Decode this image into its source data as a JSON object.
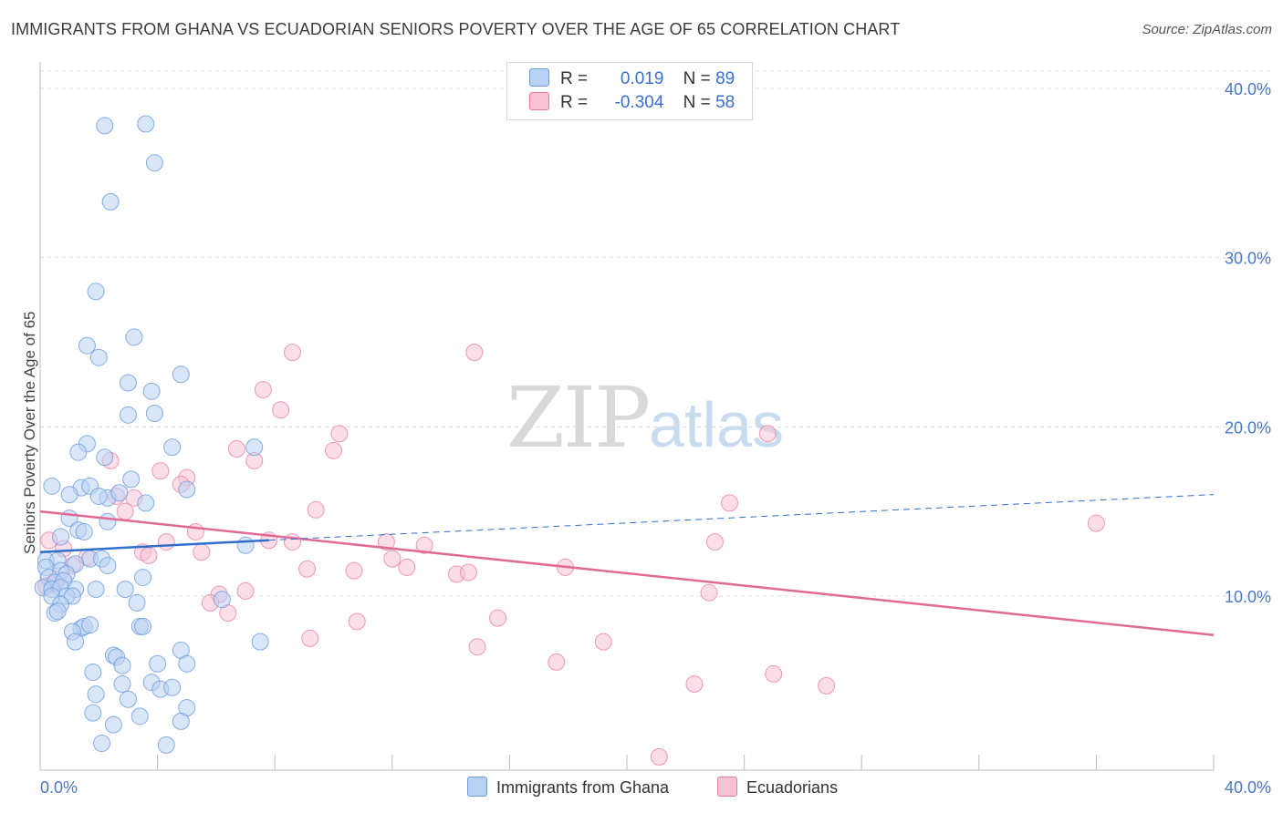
{
  "title": "IMMIGRANTS FROM GHANA VS ECUADORIAN SENIORS POVERTY OVER THE AGE OF 65 CORRELATION CHART",
  "source": "Source: ZipAtlas.com",
  "watermark": {
    "zip": "ZIP",
    "atlas": "atlas"
  },
  "legend": {
    "rows": [
      {
        "r_label": "R =",
        "r_value": "0.019",
        "n_label": "N =",
        "n_value": "89"
      },
      {
        "r_label": "R =",
        "r_value": "-0.304",
        "n_label": "N =",
        "n_value": "58"
      }
    ]
  },
  "bottom_legend": [
    "Immigrants from Ghana",
    "Ecuadorians"
  ],
  "colors": {
    "ghana": "#6b9be0",
    "ghana_fill": "#b9d1f3",
    "ecuador": "#e87aa0",
    "ecuador_fill": "#f7c3d4",
    "ghana_line": "#2f6fd0",
    "ecuador_line": "#e06a95"
  },
  "chart_data": {
    "type": "scatter",
    "title": "IMMIGRANTS FROM GHANA VS ECUADORIAN SENIORS POVERTY OVER THE AGE OF 65 CORRELATION CHART",
    "xlabel": "",
    "ylabel": "Seniors Poverty Over the Age of 65",
    "xlim": [
      0,
      40
    ],
    "ylim": [
      0,
      40
    ],
    "x_tick_labels": [
      "0.0%",
      "40.0%"
    ],
    "y_tick_labels": [
      "10.0%",
      "20.0%",
      "30.0%",
      "40.0%"
    ],
    "y_ticks": [
      10,
      20,
      30,
      40
    ],
    "grid": true,
    "legend_position": "top-center",
    "series": [
      {
        "name": "Immigrants from Ghana",
        "r": 0.019,
        "n": 89,
        "trend": {
          "x": [
            0,
            7.8
          ],
          "y": [
            12.6,
            13.3
          ],
          "dashed_extension": {
            "x": [
              7.8,
              40
            ],
            "y": [
              13.3,
              16.0
            ]
          }
        },
        "points": [
          [
            2.2,
            37.8
          ],
          [
            3.6,
            37.9
          ],
          [
            3.9,
            35.6
          ],
          [
            2.4,
            33.3
          ],
          [
            1.9,
            28.0
          ],
          [
            3.2,
            25.3
          ],
          [
            1.6,
            24.8
          ],
          [
            2.0,
            24.1
          ],
          [
            4.8,
            23.1
          ],
          [
            3.0,
            22.6
          ],
          [
            3.8,
            22.1
          ],
          [
            3.0,
            20.7
          ],
          [
            3.9,
            20.8
          ],
          [
            1.6,
            19.0
          ],
          [
            4.5,
            18.8
          ],
          [
            7.3,
            18.8
          ],
          [
            1.3,
            18.5
          ],
          [
            2.2,
            18.2
          ],
          [
            0.4,
            16.5
          ],
          [
            1.4,
            16.4
          ],
          [
            1.7,
            16.5
          ],
          [
            3.1,
            16.9
          ],
          [
            5.0,
            16.3
          ],
          [
            1.0,
            16.0
          ],
          [
            2.3,
            15.8
          ],
          [
            2.7,
            16.1
          ],
          [
            3.6,
            15.5
          ],
          [
            1.0,
            14.6
          ],
          [
            2.3,
            14.4
          ],
          [
            0.7,
            13.5
          ],
          [
            1.3,
            13.9
          ],
          [
            1.5,
            13.8
          ],
          [
            7.0,
            13.0
          ],
          [
            0.2,
            12.1
          ],
          [
            0.6,
            12.1
          ],
          [
            1.7,
            12.2
          ],
          [
            1.2,
            11.9
          ],
          [
            2.1,
            12.2
          ],
          [
            0.2,
            11.7
          ],
          [
            0.7,
            11.5
          ],
          [
            0.9,
            11.3
          ],
          [
            2.3,
            11.8
          ],
          [
            0.3,
            11.1
          ],
          [
            0.5,
            10.8
          ],
          [
            0.8,
            10.9
          ],
          [
            3.5,
            11.1
          ],
          [
            0.1,
            10.5
          ],
          [
            0.4,
            10.4
          ],
          [
            0.7,
            10.5
          ],
          [
            1.2,
            10.4
          ],
          [
            1.9,
            10.4
          ],
          [
            2.9,
            10.4
          ],
          [
            0.4,
            10.0
          ],
          [
            0.9,
            10.0
          ],
          [
            1.1,
            10.0
          ],
          [
            0.7,
            9.5
          ],
          [
            3.3,
            9.6
          ],
          [
            6.2,
            9.8
          ],
          [
            0.5,
            9.0
          ],
          [
            0.6,
            9.1
          ],
          [
            1.4,
            8.1
          ],
          [
            1.5,
            8.2
          ],
          [
            1.1,
            7.9
          ],
          [
            1.7,
            8.3
          ],
          [
            3.4,
            8.2
          ],
          [
            3.5,
            8.2
          ],
          [
            1.2,
            7.3
          ],
          [
            7.5,
            7.3
          ],
          [
            4.8,
            6.8
          ],
          [
            2.5,
            6.5
          ],
          [
            2.6,
            6.4
          ],
          [
            2.8,
            5.9
          ],
          [
            4.0,
            6.0
          ],
          [
            5.0,
            6.0
          ],
          [
            1.8,
            5.5
          ],
          [
            2.8,
            4.8
          ],
          [
            3.8,
            4.9
          ],
          [
            4.1,
            4.5
          ],
          [
            4.5,
            4.6
          ],
          [
            1.9,
            4.2
          ],
          [
            3.0,
            3.9
          ],
          [
            5.0,
            3.4
          ],
          [
            1.8,
            3.1
          ],
          [
            3.4,
            2.9
          ],
          [
            4.8,
            2.6
          ],
          [
            2.5,
            2.4
          ],
          [
            2.1,
            1.3
          ],
          [
            4.3,
            1.2
          ],
          [
            2.0,
            15.9
          ]
        ]
      },
      {
        "name": "Ecuadorians",
        "r": -0.304,
        "n": 58,
        "trend": {
          "x": [
            0,
            40
          ],
          "y": [
            15.0,
            7.7
          ]
        },
        "points": [
          [
            8.6,
            24.4
          ],
          [
            14.8,
            24.4
          ],
          [
            7.6,
            22.2
          ],
          [
            8.2,
            21.0
          ],
          [
            10.2,
            19.6
          ],
          [
            24.8,
            19.6
          ],
          [
            6.7,
            18.7
          ],
          [
            10.0,
            18.6
          ],
          [
            7.3,
            18.0
          ],
          [
            2.4,
            18.0
          ],
          [
            4.1,
            17.4
          ],
          [
            5.0,
            17.0
          ],
          [
            4.8,
            16.6
          ],
          [
            2.6,
            15.9
          ],
          [
            3.2,
            15.8
          ],
          [
            23.5,
            15.5
          ],
          [
            9.4,
            15.1
          ],
          [
            2.9,
            15.0
          ],
          [
            36.0,
            14.3
          ],
          [
            5.3,
            13.8
          ],
          [
            0.3,
            13.3
          ],
          [
            4.3,
            13.2
          ],
          [
            7.8,
            13.3
          ],
          [
            8.6,
            13.2
          ],
          [
            11.8,
            13.2
          ],
          [
            13.1,
            13.0
          ],
          [
            1.6,
            12.3
          ],
          [
            0.8,
            12.8
          ],
          [
            3.5,
            12.6
          ],
          [
            3.7,
            12.4
          ],
          [
            5.5,
            12.6
          ],
          [
            23.0,
            13.2
          ],
          [
            12.0,
            12.2
          ],
          [
            9.1,
            11.6
          ],
          [
            10.7,
            11.5
          ],
          [
            12.5,
            11.7
          ],
          [
            17.9,
            11.7
          ],
          [
            14.2,
            11.3
          ],
          [
            14.6,
            11.4
          ],
          [
            0.6,
            11.0
          ],
          [
            0.4,
            10.7
          ],
          [
            6.1,
            10.1
          ],
          [
            7.0,
            10.3
          ],
          [
            22.8,
            10.2
          ],
          [
            5.8,
            9.6
          ],
          [
            6.4,
            9.0
          ],
          [
            10.8,
            8.5
          ],
          [
            15.6,
            8.7
          ],
          [
            9.2,
            7.5
          ],
          [
            19.2,
            7.3
          ],
          [
            14.9,
            7.0
          ],
          [
            17.6,
            6.1
          ],
          [
            22.3,
            4.8
          ],
          [
            25.0,
            5.4
          ],
          [
            26.8,
            4.7
          ],
          [
            21.1,
            0.5
          ],
          [
            1.1,
            11.8
          ],
          [
            0.2,
            10.6
          ]
        ]
      }
    ]
  }
}
